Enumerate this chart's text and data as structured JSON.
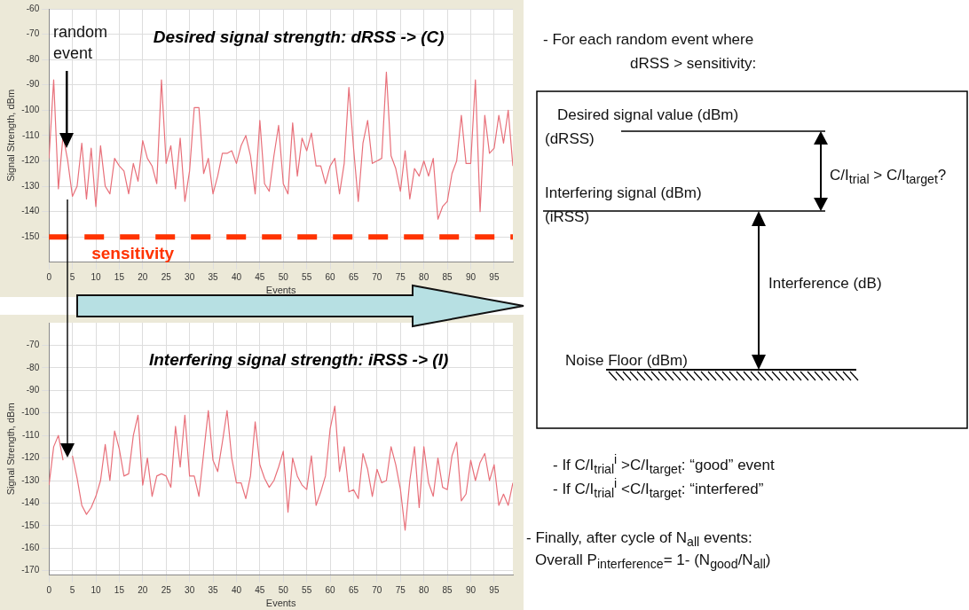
{
  "chart_data": [
    {
      "type": "line",
      "title": "Desired signal strength: dRSS -> (C)",
      "xlabel": "Events",
      "ylabel": "Signal Strength, dBm",
      "annotations": [
        "random event"
      ],
      "x": [
        0,
        1,
        2,
        3,
        4,
        5,
        6,
        7,
        8,
        9,
        10,
        11,
        12,
        13,
        14,
        15,
        16,
        17,
        18,
        19,
        20,
        21,
        22,
        23,
        24,
        25,
        26,
        27,
        28,
        29,
        30,
        31,
        32,
        33,
        34,
        35,
        36,
        37,
        38,
        39,
        40,
        41,
        42,
        43,
        44,
        45,
        46,
        47,
        48,
        49,
        50,
        51,
        52,
        53,
        54,
        55,
        56,
        57,
        58,
        59,
        60,
        61,
        62,
        63,
        64,
        65,
        66,
        67,
        68,
        69,
        70,
        71,
        72,
        73,
        74,
        75,
        76,
        77,
        78,
        79,
        80,
        81,
        82,
        83,
        84,
        85,
        86,
        87,
        88,
        89,
        90,
        91,
        92,
        93,
        94,
        95,
        96,
        97,
        98,
        99
      ],
      "series": [
        {
          "color": "#e8707a",
          "values": [
            -119,
            -88,
            -131,
            -110,
            -120,
            -134,
            -130,
            -113,
            -135,
            -115,
            -138,
            -114,
            -130,
            -133,
            -119,
            -122,
            -124,
            -133,
            -121,
            -128,
            -112,
            -119,
            -122,
            -129,
            -88,
            -121,
            -114,
            -131,
            -111,
            -136,
            -124,
            -99,
            -99,
            -125,
            -119,
            -133,
            -126,
            -117,
            -117,
            -116,
            -121,
            -114,
            -110,
            -118,
            -133,
            -104,
            -129,
            -132,
            -118,
            -106,
            -129,
            -133,
            -105,
            -126,
            -111,
            -116,
            -109,
            -122,
            -122,
            -129,
            -122,
            -119,
            -133,
            -121,
            -91,
            -115,
            -136,
            -113,
            -104,
            -121,
            -120,
            -119,
            -85,
            -118,
            -123,
            -132,
            -116,
            -135,
            -123,
            -126,
            -120,
            -126,
            -119,
            -143,
            -138,
            -136,
            -125,
            -120,
            -102,
            -121,
            -121,
            -88,
            -140,
            -102,
            -117,
            -115,
            -102,
            -113,
            -100,
            -122
          ]
        }
      ],
      "xlim": [
        0,
        99
      ],
      "xticks": [
        0,
        5,
        10,
        15,
        20,
        25,
        30,
        35,
        40,
        45,
        50,
        55,
        60,
        65,
        70,
        75,
        80,
        85,
        90,
        95
      ],
      "ylim": [
        -160,
        -60
      ],
      "yticks": [
        -60,
        -70,
        -80,
        -90,
        -100,
        -110,
        -120,
        -130,
        -140,
        -150
      ],
      "grid": true,
      "legend": false,
      "marker": "none",
      "line_style": "solid",
      "ref_lines": [
        {
          "axis": "y",
          "value": -150,
          "label": "sensitivity",
          "color": "#ff3300",
          "line_style": "dashed"
        }
      ]
    },
    {
      "type": "line",
      "title": "Interfering signal strength: iRSS -> (I)",
      "xlabel": "Events",
      "ylabel": "Signal Strength, dBm",
      "x": [
        0,
        1,
        2,
        3,
        4,
        5,
        6,
        7,
        8,
        9,
        10,
        11,
        12,
        13,
        14,
        15,
        16,
        17,
        18,
        19,
        20,
        21,
        22,
        23,
        24,
        25,
        26,
        27,
        28,
        29,
        30,
        31,
        32,
        33,
        34,
        35,
        36,
        37,
        38,
        39,
        40,
        41,
        42,
        43,
        44,
        45,
        46,
        47,
        48,
        49,
        50,
        51,
        52,
        53,
        54,
        55,
        56,
        57,
        58,
        59,
        60,
        61,
        62,
        63,
        64,
        65,
        66,
        67,
        68,
        69,
        70,
        71,
        72,
        73,
        74,
        75,
        76,
        77,
        78,
        79,
        80,
        81,
        82,
        83,
        84,
        85,
        86,
        87,
        88,
        89,
        90,
        91,
        92,
        93,
        94,
        95,
        96,
        97,
        98,
        99
      ],
      "series": [
        {
          "color": "#e8707a",
          "values": [
            -132,
            -115,
            -110,
            -121,
            null,
            -119,
            -129,
            -141,
            -145,
            -142,
            -137,
            -130,
            -114,
            -130,
            -108,
            -116,
            -128,
            -127,
            -110,
            -101,
            -132,
            -120,
            -137,
            -128,
            -127,
            -128,
            -133,
            -106,
            -124,
            -101,
            -128,
            -128,
            -137,
            -118,
            -99,
            -121,
            -126,
            -113,
            -99,
            -120,
            -131,
            -131,
            -138,
            -128,
            -104,
            -123,
            -129,
            -133,
            -130,
            -124,
            -117,
            -144,
            -120,
            -128,
            -132,
            -134,
            -119,
            -141,
            -135,
            -128,
            -107,
            -97,
            -126,
            -115,
            -135,
            -134,
            -138,
            -118,
            -125,
            -137,
            -125,
            -131,
            -130,
            -115,
            -123,
            -134,
            -152,
            -130,
            -115,
            -142,
            -115,
            -131,
            -137,
            -120,
            -133,
            -134,
            -119,
            -113,
            -139,
            -136,
            -121,
            -130,
            -122,
            -118,
            -130,
            -123,
            -141,
            -136,
            -141,
            -131
          ]
        }
      ],
      "xlim": [
        0,
        99
      ],
      "xticks": [
        0,
        5,
        10,
        15,
        20,
        25,
        30,
        35,
        40,
        45,
        50,
        55,
        60,
        65,
        70,
        75,
        80,
        85,
        90,
        95
      ],
      "ylim": [
        -172,
        -60
      ],
      "yticks": [
        -70,
        -80,
        -90,
        -100,
        -110,
        -120,
        -130,
        -140,
        -150,
        -160,
        -170
      ],
      "grid": true,
      "legend": false,
      "marker": "none",
      "line_style": "solid"
    },
    {
      "type": "other",
      "annotations": [
        "- For each random event where",
        "dRSS > sensitivity:",
        "Desired signal value (dBm)",
        "(dRSS)",
        "C/I$_{trial}$ > C/I$_{target}$?",
        "Interfering signal (dBm)",
        "(iRSS)",
        "Interference (dB)",
        "Noise Floor (dBm)",
        "- If C/I$_{trial}$$^{i}$ >C/I$_{target}$: “good” event",
        "- If C/I$_{trial}$$^{i}$ <C/I$_{target}$: “interfered”",
        "- Finally, after cycle of N$_{all}$ events:",
        "Overall P$_{interference}$= 1- (N$_{good}$/N$_{all}$)"
      ]
    }
  ]
}
